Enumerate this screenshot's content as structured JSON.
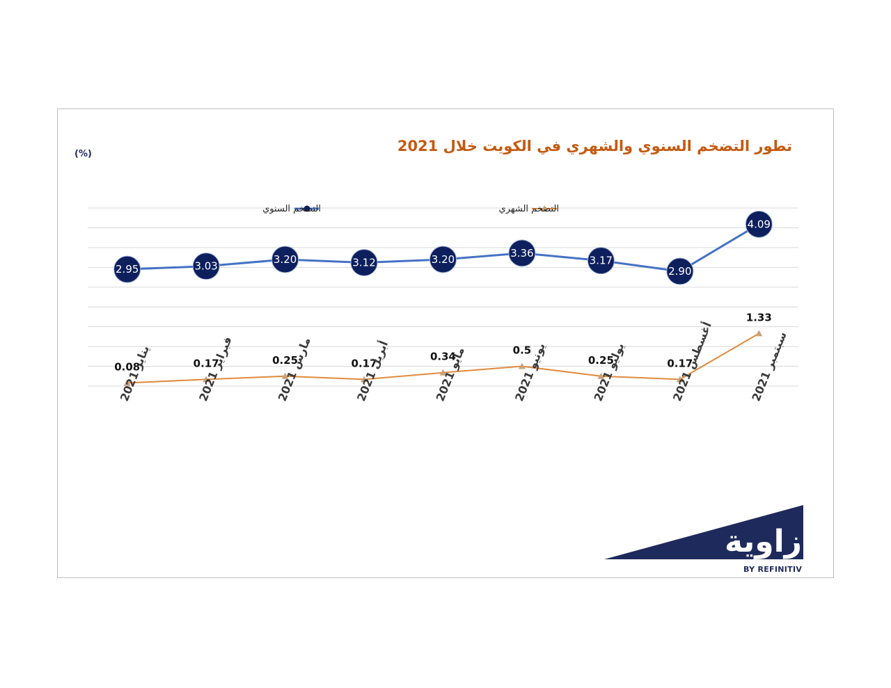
{
  "chart_data": {
    "type": "line",
    "title": "تطور التضخم السنوي والشهري في  الكويت خلال 2021",
    "unit_label": "(%)",
    "categories": [
      "يناير 2021",
      "فبراير 2021",
      "مارس 2021",
      "أبريل 2021",
      "مايو 2021",
      "يونيو 2021",
      "يوليو 2021",
      "أغسطس 2021",
      "سبتمبر 2021"
    ],
    "series": [
      {
        "name": "التضخم السنوي",
        "values": [
          2.95,
          3.03,
          3.2,
          3.12,
          3.2,
          3.36,
          3.17,
          2.9,
          4.09
        ],
        "labels": [
          "2.95",
          "3.03",
          "3.20",
          "3.12",
          "3.20",
          "3.36",
          "3.17",
          "2.90",
          "4.09"
        ],
        "color": "#4472c4",
        "marker_color": "#0d1f5c",
        "marker": "circle"
      },
      {
        "name": "التضخم الشهري",
        "values": [
          0.08,
          0.17,
          0.25,
          0.17,
          0.34,
          0.5,
          0.25,
          0.17,
          1.33
        ],
        "labels": [
          "0.08",
          "0.17",
          "0.25",
          "0.17",
          "0.34",
          "0.5",
          "0.25",
          "0.17",
          "1.33"
        ],
        "color": "#e08a3c",
        "marker_color": "#c9a27a",
        "marker": "triangle"
      }
    ],
    "ylim": [
      0,
      4.5
    ],
    "grid": true,
    "legend_position": "top",
    "xlabel": "",
    "ylabel": ""
  },
  "logo": {
    "brand_text": "زاوية",
    "sub_text": "BY REFINITIV",
    "color": "#1f2a5c"
  }
}
